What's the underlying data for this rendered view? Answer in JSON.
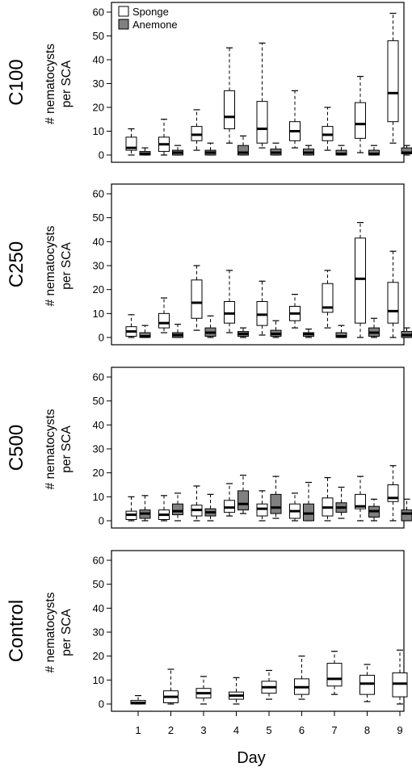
{
  "chart_data": {
    "type": "box",
    "xlabel": "Day",
    "days": [
      1,
      2,
      3,
      4,
      5,
      6,
      7,
      8,
      9
    ],
    "ylim": [
      0,
      60
    ],
    "yticks": [
      0,
      10,
      20,
      30,
      40,
      50,
      60
    ],
    "legend": {
      "position": "top-left",
      "items": [
        {
          "name": "Sponge",
          "color": "#ffffff"
        },
        {
          "name": "Anemone",
          "color": "#808080"
        }
      ]
    },
    "panels": [
      {
        "title": "C100",
        "ylabel_line1": "# nematocysts",
        "ylabel_line2": "per SCA",
        "series": [
          {
            "name": "Sponge",
            "color": "#ffffff",
            "boxes": [
              [
                0,
                2,
                3,
                7.5,
                11
              ],
              [
                0,
                1.5,
                4.5,
                7.5,
                15
              ],
              [
                2,
                6,
                8.5,
                12,
                19
              ],
              [
                5,
                11,
                16,
                27,
                45
              ],
              [
                3,
                5,
                11,
                22.5,
                47
              ],
              [
                3,
                6,
                10,
                14,
                27
              ],
              [
                2,
                6,
                8.5,
                12,
                20
              ],
              [
                1,
                7,
                13,
                22,
                33
              ],
              [
                5,
                14,
                26,
                48,
                59.5
              ]
            ]
          },
          {
            "name": "Anemone",
            "color": "#808080",
            "boxes": [
              [
                0,
                0,
                0.5,
                1.5,
                3
              ],
              [
                0,
                0,
                1,
                2,
                4
              ],
              [
                0,
                0,
                1,
                2,
                5
              ],
              [
                0,
                0,
                1,
                4,
                8
              ],
              [
                0,
                0,
                1,
                2.5,
                5
              ],
              [
                0,
                0,
                1,
                2.5,
                4
              ],
              [
                0,
                0,
                0.5,
                2,
                4
              ],
              [
                0,
                0,
                0.5,
                2,
                4
              ],
              [
                0,
                0.5,
                1,
                3,
                4
              ]
            ]
          }
        ]
      },
      {
        "title": "C250",
        "ylabel_line1": "# nematocysts",
        "ylabel_line2": "per SCA",
        "series": [
          {
            "name": "Sponge",
            "color": "#ffffff",
            "boxes": [
              [
                0,
                0.5,
                2.5,
                4.5,
                9.5
              ],
              [
                2,
                4,
                6,
                10,
                16.5
              ],
              [
                3,
                8,
                14.5,
                24,
                30
              ],
              [
                2,
                6,
                10,
                15,
                28
              ],
              [
                1,
                5,
                9.5,
                15,
                23.5
              ],
              [
                4,
                7,
                10,
                13,
                18
              ],
              [
                4,
                10.5,
                12.5,
                22.5,
                28
              ],
              [
                0,
                6,
                24.5,
                41.5,
                48
              ],
              [
                0,
                6,
                11,
                23,
                36
              ]
            ]
          },
          {
            "name": "Anemone",
            "color": "#808080",
            "boxes": [
              [
                0,
                0,
                0.5,
                2,
                5
              ],
              [
                0,
                0,
                1,
                2,
                5.5
              ],
              [
                0,
                0.5,
                2,
                4,
                9
              ],
              [
                0,
                0.5,
                1.5,
                2.5,
                4
              ],
              [
                0,
                0.5,
                1.5,
                3,
                7
              ],
              [
                0,
                0.5,
                1.5,
                2,
                3.5
              ],
              [
                0,
                0,
                0.5,
                2,
                5
              ],
              [
                0,
                0.5,
                2,
                4,
                8
              ],
              [
                0,
                0,
                1,
                2.5,
                4
              ]
            ]
          }
        ]
      },
      {
        "title": "C500",
        "ylabel_line1": "# nematocysts",
        "ylabel_line2": "per SCA",
        "series": [
          {
            "name": "Sponge",
            "color": "#ffffff",
            "boxes": [
              [
                0,
                0.5,
                2.5,
                4,
                10
              ],
              [
                0,
                0.5,
                2.5,
                4.5,
                10.5
              ],
              [
                0,
                2,
                4.5,
                6.5,
                14.5
              ],
              [
                2,
                3.5,
                5.5,
                8.5,
                15.5
              ],
              [
                0,
                2,
                5,
                7,
                12.5
              ],
              [
                0,
                1,
                4,
                7,
                11.5
              ],
              [
                0,
                2,
                5.5,
                9.5,
                18
              ],
              [
                0,
                5,
                6,
                11,
                18.5
              ],
              [
                0,
                8,
                9.5,
                15,
                23
              ]
            ]
          },
          {
            "name": "Anemone",
            "color": "#808080",
            "boxes": [
              [
                0,
                1,
                3,
                4.5,
                10.5
              ],
              [
                0,
                2.5,
                4,
                7,
                11.5
              ],
              [
                0,
                2,
                3.5,
                5,
                11
              ],
              [
                3,
                4.5,
                7,
                12.5,
                19
              ],
              [
                1,
                3,
                5.5,
                11,
                18.5
              ],
              [
                0,
                0,
                3,
                7,
                16
              ],
              [
                1,
                3.5,
                5.5,
                7.5,
                14
              ],
              [
                0,
                1.5,
                4,
                6,
                9
              ],
              [
                0,
                0,
                3,
                4.5,
                9
              ]
            ]
          }
        ]
      },
      {
        "title": "Control",
        "ylabel_line1": "# nematocysts",
        "ylabel_line2": "per SCA",
        "series": [
          {
            "name": "Sponge",
            "color": "#ffffff",
            "boxes": [
              [
                0,
                0,
                0.5,
                1.5,
                3.5
              ],
              [
                0,
                0.5,
                3,
                5.5,
                14.5
              ],
              [
                0,
                2.5,
                4.5,
                6.5,
                11.5
              ],
              [
                0,
                2,
                3.5,
                5,
                11
              ],
              [
                2,
                4.5,
                7,
                9.5,
                14
              ],
              [
                2,
                4,
                7,
                10.5,
                20
              ],
              [
                4,
                7.5,
                10.5,
                17,
                22
              ],
              [
                1,
                4,
                8.5,
                12,
                16.5
              ],
              [
                0,
                3,
                8.5,
                13,
                22.5
              ]
            ]
          }
        ]
      }
    ]
  }
}
